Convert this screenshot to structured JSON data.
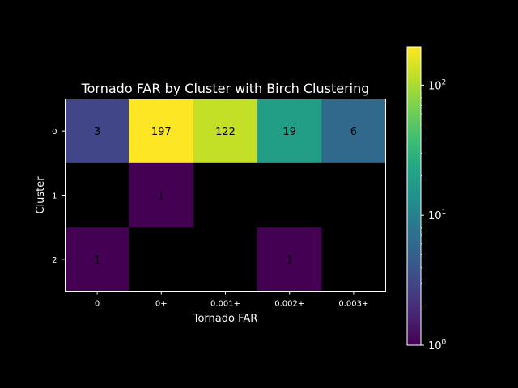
{
  "chart_data": {
    "type": "heatmap",
    "title": "Tornado FAR by Cluster with Birch Clustering",
    "xlabel": "Tornado FAR",
    "ylabel": "Cluster",
    "x_categories": [
      "0",
      "0+",
      "0.001+",
      "0.002+",
      "0.003+"
    ],
    "y_categories": [
      "0",
      "1",
      "2"
    ],
    "values": [
      [
        3,
        197,
        122,
        19,
        6
      ],
      [
        null,
        1,
        null,
        null,
        null
      ],
      [
        1,
        null,
        null,
        1,
        null
      ]
    ],
    "cell_labels": [
      [
        "3",
        "197",
        "122",
        "19",
        "6"
      ],
      [
        "",
        "1",
        "",
        "",
        ""
      ],
      [
        "1",
        "",
        "",
        "1",
        ""
      ]
    ],
    "colormap": "viridis",
    "color_scale": "log",
    "color_range": [
      1,
      197
    ],
    "colorbar_ticks": [
      {
        "base": "10",
        "exp": "0",
        "value": 1
      },
      {
        "base": "10",
        "exp": "1",
        "value": 10
      },
      {
        "base": "10",
        "exp": "2",
        "value": 100
      }
    ],
    "empty_cell_color": "#000000",
    "text_color": "#000000",
    "background": "#000000",
    "foreground": "#ffffff"
  }
}
